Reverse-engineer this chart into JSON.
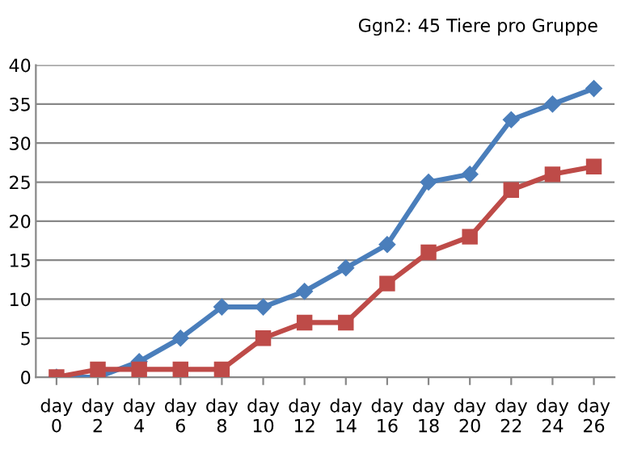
{
  "chart_data": {
    "type": "line",
    "title": "Ggn2: 45 Tiere pro Gruppe",
    "categories": [
      "day\n0",
      "day\n2",
      "day\n4",
      "day\n6",
      "day\n8",
      "day\n10",
      "day\n12",
      "day\n14",
      "day\n16",
      "day\n18",
      "day\n20",
      "day\n22",
      "day\n24",
      "day\n26"
    ],
    "series": [
      {
        "color": "#4a7ebb",
        "marker": "diamond",
        "values": [
          0,
          0,
          2,
          5,
          9,
          9,
          11,
          14,
          17,
          25,
          26,
          33,
          35,
          37
        ]
      },
      {
        "color": "#be4b48",
        "marker": "square",
        "values": [
          0,
          1,
          1,
          1,
          1,
          5,
          7,
          7,
          12,
          16,
          18,
          24,
          26,
          27
        ]
      }
    ],
    "ylim": [
      0,
      40
    ],
    "yticks": [
      0,
      5,
      10,
      15,
      20,
      25,
      30,
      35,
      40
    ],
    "grid": "y",
    "legend": false,
    "line_style": "solid"
  }
}
